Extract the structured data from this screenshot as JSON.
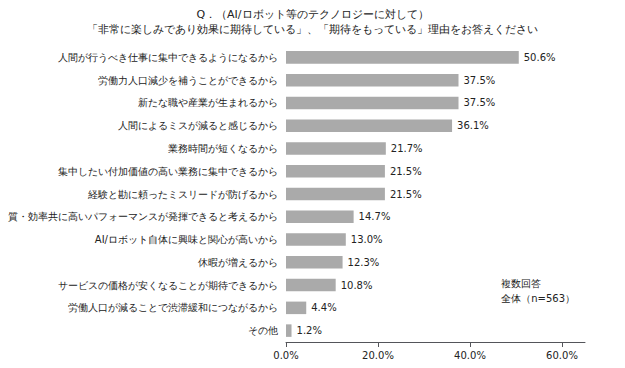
{
  "chart_data": {
    "type": "bar",
    "orientation": "horizontal",
    "title": "Q．（AI/ロボット等のテクノロジーに対して）",
    "subtitle": "「非常に楽しみであり効果に期待している」、「期待をもっている」理由をお答えください",
    "categories": [
      "人間が行うべき仕事に集中できるようになるから",
      "労働力人口減少を補うことができるから",
      "新たな職や産業が生まれるから",
      "人間によるミスが減ると感じるから",
      "業務時間が短くなるから",
      "集中したい付加価値の高い業務に集中できるから",
      "経験と勘に頼ったミスリードが防げるから",
      "質・効率共に高いパフォーマンスが発揮できると考えるから",
      "AI/ロボット自体に興味と関心が高いから",
      "休暇が増えるから",
      "サービスの価格が安くなることが期待できるから",
      "労働人口が減ることで渋滞緩和につながるから",
      "その他"
    ],
    "values": [
      50.6,
      37.5,
      37.5,
      36.1,
      21.7,
      21.5,
      21.5,
      14.7,
      13.0,
      12.3,
      10.8,
      4.4,
      1.2
    ],
    "value_labels": [
      "50.6%",
      "37.5%",
      "37.5%",
      "36.1%",
      "21.7%",
      "21.5%",
      "21.5%",
      "14.7%",
      "13.0%",
      "12.3%",
      "10.8%",
      "4.4%",
      "1.2%"
    ],
    "data_labels": true,
    "color": "#aaaaaa",
    "xlim": [
      0,
      65
    ],
    "xticks": [
      {
        "value": 0,
        "label": "0.0%"
      },
      {
        "value": 20,
        "label": "20.0%"
      },
      {
        "value": 40,
        "label": "40.0%"
      },
      {
        "value": 60,
        "label": "60.0%"
      }
    ],
    "annotations": [
      "複数回答",
      "全体（n=563）"
    ],
    "grid": false
  }
}
